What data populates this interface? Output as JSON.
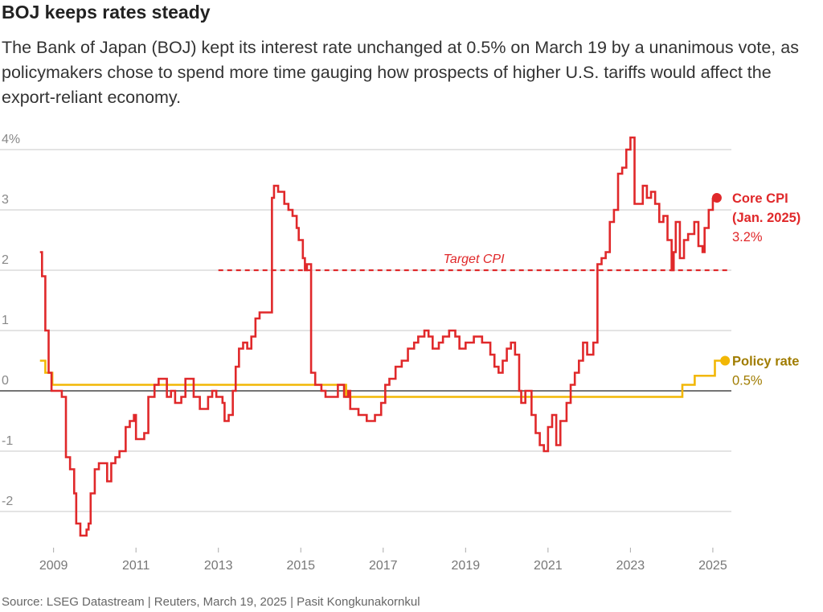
{
  "chart_data": {
    "type": "line",
    "title": "BOJ keeps rates steady",
    "subtitle": "The Bank of Japan (BOJ) kept its interest rate unchanged at 0.5% on March 19 by a unanimous vote, as policymakers chose to spend more time gauging how prospects of higher U.S. tariffs would affect the export-reliant economy.",
    "source": "Source: LSEG Datastream | Reuters, March 19, 2025 | Pasit Kongkunakornkul",
    "step": true,
    "xlim": [
      2007.7,
      2025.45
    ],
    "xticks": [
      2009,
      2011,
      2013,
      2015,
      2017,
      2019,
      2021,
      2023,
      2025
    ],
    "ylim": [
      -2.6,
      4.25
    ],
    "yticks": [
      {
        "value": 4,
        "label": "4%"
      },
      3,
      2,
      1,
      0,
      -1,
      -2
    ],
    "grid": true,
    "series": [
      {
        "name": "Core CPI",
        "color": "#e0282a",
        "end_note": "(Jan. 2025)",
        "end_value_label": "3.2%",
        "x": [
          2008.67,
          2008.72,
          2008.8,
          2008.88,
          2008.95,
          2009.2,
          2009.3,
          2009.4,
          2009.5,
          2009.55,
          2009.65,
          2009.8,
          2009.85,
          2009.9,
          2010.0,
          2010.1,
          2010.3,
          2010.4,
          2010.5,
          2010.6,
          2010.75,
          2010.85,
          2010.95,
          2011.0,
          2011.2,
          2011.3,
          2011.45,
          2011.55,
          2011.75,
          2011.85,
          2011.95,
          2012.1,
          2012.2,
          2012.4,
          2012.55,
          2012.75,
          2012.85,
          2012.95,
          2013.1,
          2013.15,
          2013.25,
          2013.35,
          2013.42,
          2013.5,
          2013.6,
          2013.7,
          2013.8,
          2013.9,
          2014.0,
          2014.3,
          2014.35,
          2014.45,
          2014.6,
          2014.7,
          2014.8,
          2014.9,
          2014.95,
          2015.05,
          2015.1,
          2015.15,
          2015.25,
          2015.35,
          2015.5,
          2015.6,
          2015.9,
          2016.05,
          2016.15,
          2016.2,
          2016.4,
          2016.6,
          2016.8,
          2016.95,
          2017.05,
          2017.15,
          2017.3,
          2017.45,
          2017.6,
          2017.75,
          2017.85,
          2018.0,
          2018.1,
          2018.2,
          2018.35,
          2018.45,
          2018.6,
          2018.75,
          2018.85,
          2019.0,
          2019.2,
          2019.4,
          2019.6,
          2019.7,
          2019.8,
          2019.9,
          2020.0,
          2020.1,
          2020.2,
          2020.3,
          2020.35,
          2020.45,
          2020.6,
          2020.7,
          2020.8,
          2020.9,
          2021.0,
          2021.1,
          2021.2,
          2021.3,
          2021.45,
          2021.55,
          2021.65,
          2021.75,
          2021.85,
          2021.95,
          2022.1,
          2022.2,
          2022.3,
          2022.4,
          2022.5,
          2022.6,
          2022.7,
          2022.8,
          2022.9,
          2023.0,
          2023.1,
          2023.3,
          2023.4,
          2023.5,
          2023.6,
          2023.7,
          2023.8,
          2023.9,
          2024.0,
          2024.05,
          2024.1,
          2024.2,
          2024.3,
          2024.4,
          2024.55,
          2024.65,
          2024.75,
          2024.8,
          2024.9,
          2025.0
        ],
        "values": [
          2.3,
          1.9,
          1.0,
          0.3,
          0.0,
          -0.1,
          -1.1,
          -1.3,
          -1.7,
          -2.2,
          -2.4,
          -2.3,
          -2.2,
          -1.7,
          -1.3,
          -1.2,
          -1.5,
          -1.2,
          -1.1,
          -1.0,
          -0.6,
          -0.5,
          -0.4,
          -0.8,
          -0.7,
          -0.1,
          0.1,
          0.2,
          -0.1,
          0.0,
          -0.2,
          -0.1,
          0.2,
          -0.1,
          -0.3,
          -0.1,
          0.0,
          -0.1,
          -0.2,
          -0.5,
          -0.4,
          0.0,
          0.4,
          0.7,
          0.8,
          0.7,
          0.9,
          1.2,
          1.3,
          3.2,
          3.4,
          3.3,
          3.1,
          3.0,
          2.9,
          2.7,
          2.5,
          2.2,
          2.0,
          2.1,
          0.3,
          0.1,
          0.0,
          -0.1,
          0.1,
          -0.1,
          0.0,
          -0.3,
          -0.4,
          -0.5,
          -0.4,
          -0.2,
          0.1,
          0.2,
          0.4,
          0.5,
          0.7,
          0.8,
          0.9,
          1.0,
          0.9,
          0.7,
          0.8,
          0.9,
          1.0,
          0.9,
          0.7,
          0.8,
          0.9,
          0.8,
          0.6,
          0.4,
          0.3,
          0.5,
          0.7,
          0.8,
          0.6,
          0.0,
          -0.2,
          0.0,
          -0.4,
          -0.7,
          -0.9,
          -1.0,
          -0.6,
          -0.4,
          -0.9,
          -0.5,
          -0.2,
          0.1,
          0.3,
          0.5,
          0.8,
          0.6,
          0.8,
          2.1,
          2.2,
          2.3,
          2.8,
          3.0,
          3.6,
          3.7,
          4.0,
          4.2,
          3.1,
          3.4,
          3.2,
          3.3,
          3.1,
          2.8,
          2.9,
          2.5,
          2.0,
          2.3,
          2.8,
          2.2,
          2.5,
          2.6,
          2.8,
          2.4,
          2.3,
          2.7,
          3.0,
          3.2
        ]
      },
      {
        "name": "Policy rate",
        "color": "#f2b705",
        "label_color": "#a07c00",
        "end_value_label": "0.5%",
        "x": [
          2008.67,
          2008.8,
          2008.97,
          2016.1,
          2024.26,
          2024.56,
          2025.05,
          2025.2
        ],
        "values": [
          0.5,
          0.3,
          0.1,
          -0.1,
          0.1,
          0.25,
          0.5,
          0.5
        ]
      }
    ],
    "annotations": [
      {
        "text": "Target CPI",
        "value": 2,
        "x": [
          2013.0,
          2025.4
        ],
        "color": "#e0282a"
      }
    ]
  }
}
